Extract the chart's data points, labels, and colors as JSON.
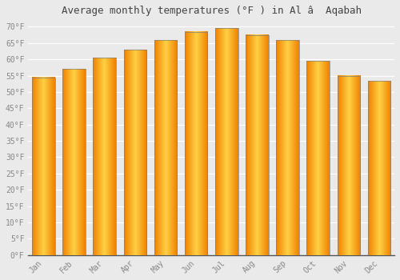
{
  "title": "Average monthly temperatures (°F ) in Al â  Aqabah",
  "months": [
    "Jan",
    "Feb",
    "Mar",
    "Apr",
    "May",
    "Jun",
    "Jul",
    "Aug",
    "Sep",
    "Oct",
    "Nov",
    "Dec"
  ],
  "values": [
    54.5,
    57.0,
    60.5,
    63.0,
    66.0,
    68.5,
    69.5,
    67.5,
    66.0,
    59.5,
    55.0,
    53.5
  ],
  "bar_color": "#FFA500",
  "bar_grad_center": "#FFD044",
  "bar_grad_edge": "#F08000",
  "edge_color": "#808080",
  "background_color": "#EAEAEA",
  "grid_color": "#FFFFFF",
  "text_color": "#888888",
  "title_color": "#444444",
  "ylim": [
    0,
    72
  ],
  "yticks": [
    0,
    5,
    10,
    15,
    20,
    25,
    30,
    35,
    40,
    45,
    50,
    55,
    60,
    65,
    70
  ]
}
